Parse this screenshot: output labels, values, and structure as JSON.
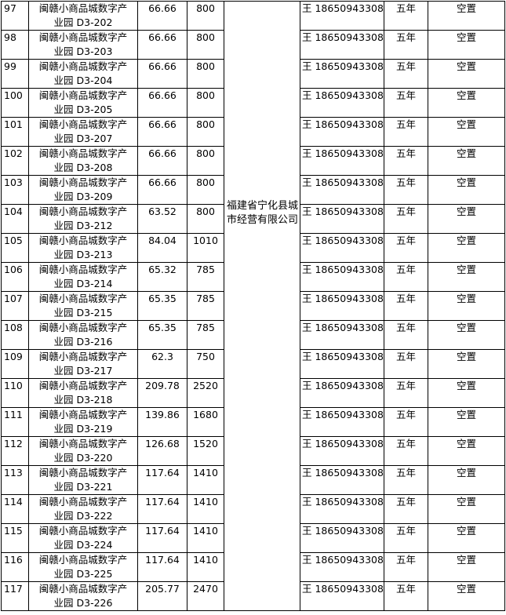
{
  "company": "福建省宁化县城市经营有限公司",
  "rows": [
    {
      "no": "97",
      "name1": "闽赣小商品城数字产",
      "name2": "业园 D3-202",
      "area": "66.66",
      "rent": "800",
      "contact": "王 18650943308",
      "term": "五年",
      "status": "空置"
    },
    {
      "no": "98",
      "name1": "闽赣小商品城数字产",
      "name2": "业园 D3-203",
      "area": "66.66",
      "rent": "800",
      "contact": "王 18650943308",
      "term": "五年",
      "status": "空置"
    },
    {
      "no": "99",
      "name1": "闽赣小商品城数字产",
      "name2": "业园 D3-204",
      "area": "66.66",
      "rent": "800",
      "contact": "王 18650943308",
      "term": "五年",
      "status": "空置"
    },
    {
      "no": "100",
      "name1": "闽赣小商品城数字产",
      "name2": "业园 D3-205",
      "area": "66.66",
      "rent": "800",
      "contact": "王 18650943308",
      "term": "五年",
      "status": "空置"
    },
    {
      "no": "101",
      "name1": "闽赣小商品城数字产",
      "name2": "业园 D3-207",
      "area": "66.66",
      "rent": "800",
      "contact": "王 18650943308",
      "term": "五年",
      "status": "空置"
    },
    {
      "no": "102",
      "name1": "闽赣小商品城数字产",
      "name2": "业园 D3-208",
      "area": "66.66",
      "rent": "800",
      "contact": "王 18650943308",
      "term": "五年",
      "status": "空置"
    },
    {
      "no": "103",
      "name1": "闽赣小商品城数字产",
      "name2": "业园 D3-209",
      "area": "66.66",
      "rent": "800",
      "contact": "王 18650943308",
      "term": "五年",
      "status": "空置"
    },
    {
      "no": "104",
      "name1": "闽赣小商品城数字产",
      "name2": "业园 D3-212",
      "area": "63.52",
      "rent": "800",
      "contact": "王 18650943308",
      "term": "五年",
      "status": "空置"
    },
    {
      "no": "105",
      "name1": "闽赣小商品城数字产",
      "name2": "业园 D3-213",
      "area": "84.04",
      "rent": "1010",
      "contact": "王 18650943308",
      "term": "五年",
      "status": "空置"
    },
    {
      "no": "106",
      "name1": "闽赣小商品城数字产",
      "name2": "业园 D3-214",
      "area": "65.32",
      "rent": "785",
      "contact": "王 18650943308",
      "term": "五年",
      "status": "空置"
    },
    {
      "no": "107",
      "name1": "闽赣小商品城数字产",
      "name2": "业园 D3-215",
      "area": "65.35",
      "rent": "785",
      "contact": "王 18650943308",
      "term": "五年",
      "status": "空置"
    },
    {
      "no": "108",
      "name1": "闽赣小商品城数字产",
      "name2": "业园 D3-216",
      "area": "65.35",
      "rent": "785",
      "contact": "王 18650943308",
      "term": "五年",
      "status": "空置"
    },
    {
      "no": "109",
      "name1": "闽赣小商品城数字产",
      "name2": "业园 D3-217",
      "area": "62.3",
      "rent": "750",
      "contact": "王 18650943308",
      "term": "五年",
      "status": "空置"
    },
    {
      "no": "110",
      "name1": "闽赣小商品城数字产",
      "name2": "业园 D3-218",
      "area": "209.78",
      "rent": "2520",
      "contact": "王 18650943308",
      "term": "五年",
      "status": "空置"
    },
    {
      "no": "111",
      "name1": "闽赣小商品城数字产",
      "name2": "业园 D3-219",
      "area": "139.86",
      "rent": "1680",
      "contact": "王 18650943308",
      "term": "五年",
      "status": "空置"
    },
    {
      "no": "112",
      "name1": "闽赣小商品城数字产",
      "name2": "业园 D3-220",
      "area": "126.68",
      "rent": "1520",
      "contact": "王 18650943308",
      "term": "五年",
      "status": "空置"
    },
    {
      "no": "113",
      "name1": "闽赣小商品城数字产",
      "name2": "业园 D3-221",
      "area": "117.64",
      "rent": "1410",
      "contact": "王 18650943308",
      "term": "五年",
      "status": "空置"
    },
    {
      "no": "114",
      "name1": "闽赣小商品城数字产",
      "name2": "业园 D3-222",
      "area": "117.64",
      "rent": "1410",
      "contact": "王 18650943308",
      "term": "五年",
      "status": "空置"
    },
    {
      "no": "115",
      "name1": "闽赣小商品城数字产",
      "name2": "业园 D3-224",
      "area": "117.64",
      "rent": "1410",
      "contact": "王 18650943308",
      "term": "五年",
      "status": "空置"
    },
    {
      "no": "116",
      "name1": "闽赣小商品城数字产",
      "name2": "业园 D3-225",
      "area": "117.64",
      "rent": "1410",
      "contact": "王 18650943308",
      "term": "五年",
      "status": "空置"
    },
    {
      "no": "117",
      "name1": "闽赣小商品城数字产",
      "name2": "业园 D3-226",
      "area": "205.77",
      "rent": "2470",
      "contact": "王 18650943308",
      "term": "五年",
      "status": "空置"
    }
  ]
}
